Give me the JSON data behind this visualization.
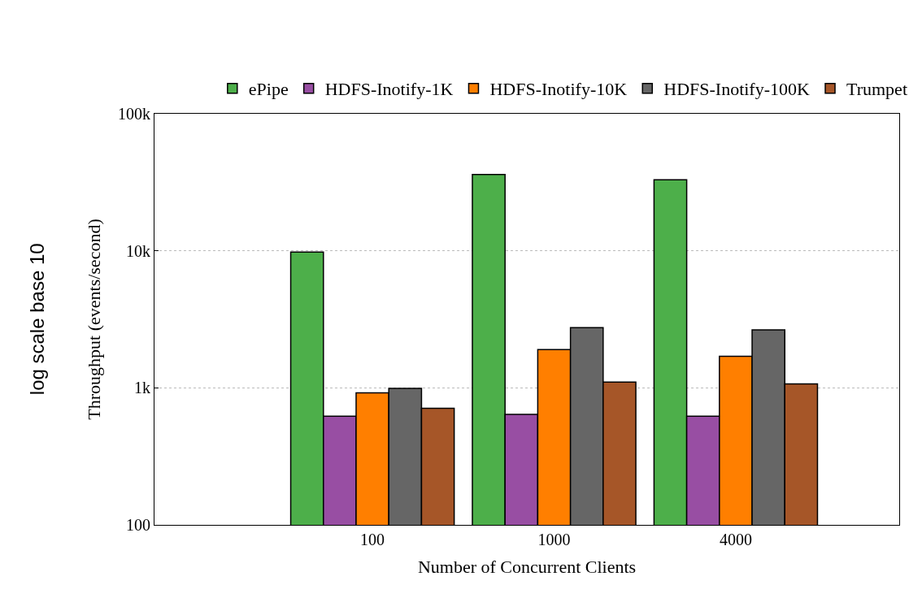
{
  "chart_data": {
    "type": "bar",
    "xlabel": "Number of Concurrent Clients",
    "ylabel": "Throughput (events/second)",
    "annotations": [
      "log scale base 10"
    ],
    "categories": [
      "100",
      "1000",
      "4000"
    ],
    "series": [
      {
        "name": "ePipe",
        "color": "#4daf4a",
        "values": [
          9800,
          36000,
          33000
        ]
      },
      {
        "name": "HDFS-Inotify-1K",
        "color": "#984ea3",
        "values": [
          620,
          640,
          620
        ]
      },
      {
        "name": "HDFS-Inotify-10K",
        "color": "#ff7f00",
        "values": [
          920,
          1900,
          1700
        ]
      },
      {
        "name": "HDFS-Inotify-100K",
        "color": "#666666",
        "values": [
          990,
          2750,
          2650
        ]
      },
      {
        "name": "Trumpet",
        "color": "#a65628",
        "values": [
          710,
          1100,
          1070
        ]
      }
    ],
    "log": true,
    "ylim": [
      100,
      100000
    ],
    "yticks": [
      100,
      {
        "value": 1000,
        "label": "1k"
      },
      {
        "value": 10000,
        "label": "10k"
      },
      {
        "value": 100000,
        "label": "100k"
      }
    ],
    "grid": "y",
    "legend": "top"
  }
}
